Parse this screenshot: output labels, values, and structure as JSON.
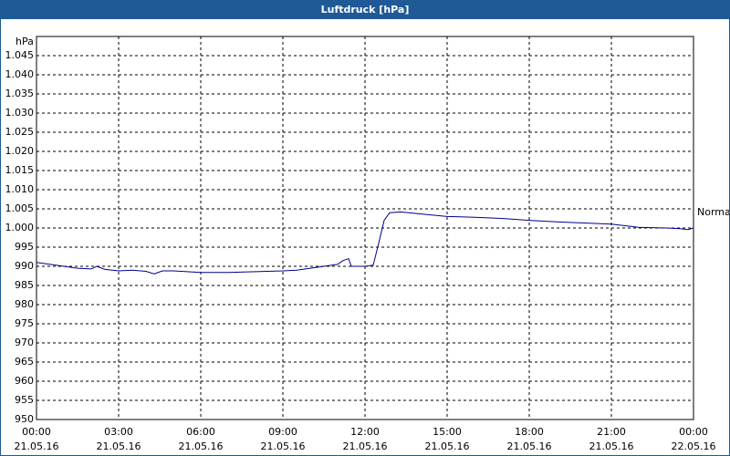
{
  "window_title": "Luftdruck [hPa]",
  "chart_data": {
    "type": "line",
    "y_label": "hPa",
    "annotation": "Normal",
    "grid": true,
    "ylim": [
      950,
      1050
    ],
    "yticks": [
      950,
      955,
      960,
      965,
      970,
      975,
      980,
      985,
      990,
      995,
      {
        "value": 1000,
        "label": "1.000"
      },
      {
        "value": 1005,
        "label": "1.005"
      },
      {
        "value": 1010,
        "label": "1.010"
      },
      {
        "value": 1015,
        "label": "1.015"
      },
      {
        "value": 1020,
        "label": "1.020"
      },
      {
        "value": 1025,
        "label": "1.025"
      },
      {
        "value": 1030,
        "label": "1.030"
      },
      {
        "value": 1035,
        "label": "1.035"
      },
      {
        "value": 1040,
        "label": "1.040"
      },
      {
        "value": 1045,
        "label": "1.045"
      }
    ],
    "xlim": [
      "2016-05-21T00:00",
      "2016-05-22T00:00"
    ],
    "xticks": [
      {
        "value": "2016-05-21T00:00",
        "label": [
          "00:00",
          "21.05.16"
        ]
      },
      {
        "value": "2016-05-21T03:00",
        "label": [
          "03:00",
          "21.05.16"
        ]
      },
      {
        "value": "2016-05-21T06:00",
        "label": [
          "06:00",
          "21.05.16"
        ]
      },
      {
        "value": "2016-05-21T09:00",
        "label": [
          "09:00",
          "21.05.16"
        ]
      },
      {
        "value": "2016-05-21T12:00",
        "label": [
          "12:00",
          "21.05.16"
        ]
      },
      {
        "value": "2016-05-21T15:00",
        "label": [
          "15:00",
          "21.05.16"
        ]
      },
      {
        "value": "2016-05-21T18:00",
        "label": [
          "18:00",
          "21.05.16"
        ]
      },
      {
        "value": "2016-05-21T21:00",
        "label": [
          "21:00",
          "21.05.16"
        ]
      },
      {
        "value": "2016-05-22T00:00",
        "label": [
          "00:00",
          "22.05.16"
        ]
      }
    ],
    "x": [
      "2016-05-21T00:00",
      "2016-05-21T00:30",
      "2016-05-21T01:00",
      "2016-05-21T01:30",
      "2016-05-21T02:00",
      "2016-05-21T02:12",
      "2016-05-21T02:30",
      "2016-05-21T03:00",
      "2016-05-21T03:30",
      "2016-05-21T04:00",
      "2016-05-21T04:18",
      "2016-05-21T04:36",
      "2016-05-21T05:00",
      "2016-05-21T05:30",
      "2016-05-21T06:00",
      "2016-05-21T07:00",
      "2016-05-21T08:00",
      "2016-05-21T09:00",
      "2016-05-21T09:30",
      "2016-05-21T10:00",
      "2016-05-21T10:30",
      "2016-05-21T11:00",
      "2016-05-21T11:12",
      "2016-05-21T11:24",
      "2016-05-21T11:30",
      "2016-05-21T12:00",
      "2016-05-21T12:18",
      "2016-05-21T12:30",
      "2016-05-21T12:42",
      "2016-05-21T12:54",
      "2016-05-21T13:18",
      "2016-05-21T14:00",
      "2016-05-21T15:00",
      "2016-05-21T16:00",
      "2016-05-21T17:00",
      "2016-05-21T18:00",
      "2016-05-21T19:00",
      "2016-05-21T20:00",
      "2016-05-21T21:00",
      "2016-05-21T21:30",
      "2016-05-21T22:00",
      "2016-05-21T23:00",
      "2016-05-21T23:30",
      "2016-05-21T23:48",
      "2016-05-22T00:00"
    ],
    "series": [
      {
        "color": "#00008b",
        "values": [
          991,
          990.5,
          990,
          989.5,
          989.3,
          990,
          989.2,
          988.8,
          989,
          988.7,
          988,
          988.8,
          988.8,
          988.6,
          988.4,
          988.4,
          988.6,
          988.8,
          989,
          989.5,
          990,
          990.5,
          991.5,
          992,
          990,
          990,
          990.3,
          996,
          1002,
          1004,
          1004.2,
          1003.7,
          1003,
          1002.8,
          1002.5,
          1002,
          1001.6,
          1001.3,
          1001,
          1000.6,
          1000.2,
          1000,
          999.8,
          999.6,
          1000
        ]
      }
    ]
  }
}
